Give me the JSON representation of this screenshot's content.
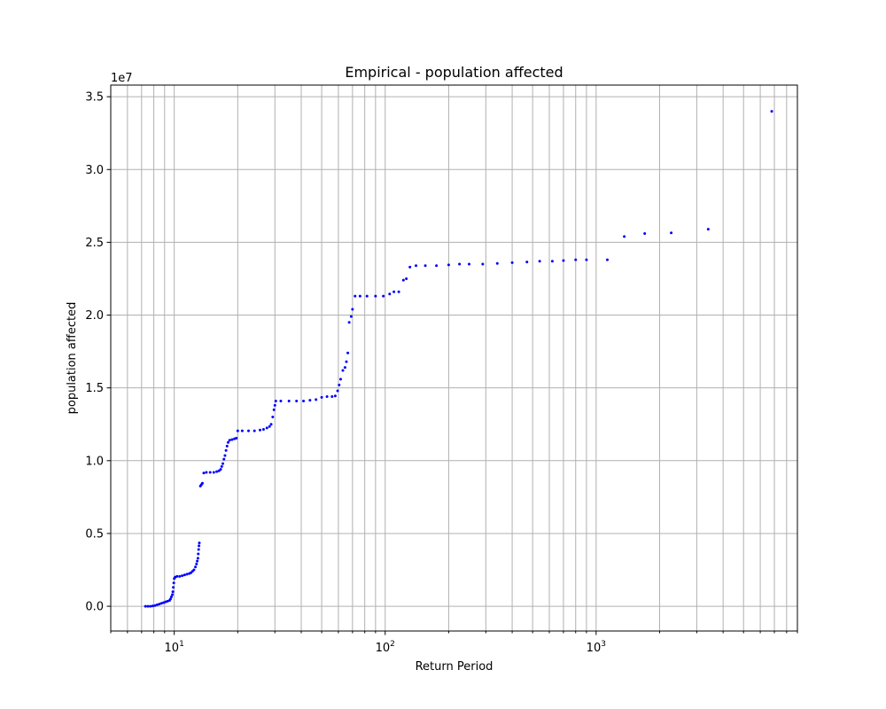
{
  "chart_data": {
    "type": "scatter",
    "title": "Empirical - population affected",
    "xlabel": "Return Period",
    "ylabel": "population affected",
    "x_scale": "log",
    "xlim": [
      5.0,
      9000
    ],
    "ylim": [
      -1700000.0,
      35800000.0
    ],
    "y_offset_label": "1e7",
    "x_ticks": [
      {
        "value": 10,
        "base": "10",
        "exp": "1"
      },
      {
        "value": 100,
        "base": "10",
        "exp": "2"
      },
      {
        "value": 1000,
        "base": "10",
        "exp": "3"
      }
    ],
    "y_ticks": [
      {
        "value": 0,
        "label": "0.0"
      },
      {
        "value": 5000000,
        "label": "0.5"
      },
      {
        "value": 10000000,
        "label": "1.0"
      },
      {
        "value": 15000000,
        "label": "1.5"
      },
      {
        "value": 20000000,
        "label": "2.0"
      },
      {
        "value": 25000000,
        "label": "2.5"
      },
      {
        "value": 30000000,
        "label": "3.0"
      },
      {
        "value": 35000000,
        "label": "3.5"
      }
    ],
    "grid": true,
    "marker_color": "#0000ff",
    "series": [
      {
        "points": [
          [
            7.3,
            0
          ],
          [
            7.5,
            0
          ],
          [
            7.7,
            0
          ],
          [
            7.9,
            20000
          ],
          [
            8.1,
            50000
          ],
          [
            8.3,
            100000
          ],
          [
            8.5,
            150000
          ],
          [
            8.7,
            200000
          ],
          [
            8.9,
            250000
          ],
          [
            9.1,
            300000
          ],
          [
            9.3,
            350000
          ],
          [
            9.5,
            400000
          ],
          [
            9.6,
            500000
          ],
          [
            9.7,
            650000
          ],
          [
            9.8,
            800000
          ],
          [
            9.85,
            1000000
          ],
          [
            9.9,
            1300000
          ],
          [
            9.95,
            1600000
          ],
          [
            10.0,
            1900000
          ],
          [
            10.1,
            2000000
          ],
          [
            10.3,
            2050000
          ],
          [
            10.6,
            2050000
          ],
          [
            10.9,
            2100000
          ],
          [
            11.2,
            2150000
          ],
          [
            11.5,
            2200000
          ],
          [
            11.8,
            2250000
          ],
          [
            12.0,
            2300000
          ],
          [
            12.2,
            2400000
          ],
          [
            12.4,
            2500000
          ],
          [
            12.6,
            2700000
          ],
          [
            12.75,
            2900000
          ],
          [
            12.85,
            3100000
          ],
          [
            12.95,
            3300000
          ],
          [
            13.0,
            3600000
          ],
          [
            13.05,
            3900000
          ],
          [
            13.1,
            4150000
          ],
          [
            13.15,
            4350000
          ],
          [
            13.3,
            8250000
          ],
          [
            13.45,
            8350000
          ],
          [
            13.6,
            8450000
          ],
          [
            13.8,
            9150000
          ],
          [
            14.2,
            9200000
          ],
          [
            14.8,
            9200000
          ],
          [
            15.4,
            9200000
          ],
          [
            15.9,
            9250000
          ],
          [
            16.3,
            9300000
          ],
          [
            16.6,
            9400000
          ],
          [
            16.8,
            9600000
          ],
          [
            17.0,
            9800000
          ],
          [
            17.2,
            10100000
          ],
          [
            17.4,
            10350000
          ],
          [
            17.6,
            10700000
          ],
          [
            17.8,
            11000000
          ],
          [
            18.0,
            11250000
          ],
          [
            18.3,
            11400000
          ],
          [
            18.8,
            11450000
          ],
          [
            19.3,
            11500000
          ],
          [
            19.7,
            11550000
          ],
          [
            20.0,
            12050000
          ],
          [
            21.0,
            12050000
          ],
          [
            22.5,
            12050000
          ],
          [
            24.0,
            12050000
          ],
          [
            25.5,
            12100000
          ],
          [
            26.5,
            12150000
          ],
          [
            27.5,
            12250000
          ],
          [
            28.3,
            12350000
          ],
          [
            28.8,
            12500000
          ],
          [
            29.3,
            13000000
          ],
          [
            29.7,
            13500000
          ],
          [
            30.0,
            13800000
          ],
          [
            30.3,
            14100000
          ],
          [
            32.0,
            14100000
          ],
          [
            35.0,
            14100000
          ],
          [
            38.0,
            14100000
          ],
          [
            41.0,
            14100000
          ],
          [
            44.0,
            14150000
          ],
          [
            47.0,
            14200000
          ],
          [
            50.0,
            14350000
          ],
          [
            53.0,
            14400000
          ],
          [
            56.0,
            14400000
          ],
          [
            58.0,
            14450000
          ],
          [
            59.5,
            14800000
          ],
          [
            60.5,
            15200000
          ],
          [
            61.5,
            15600000
          ],
          [
            63.0,
            16200000
          ],
          [
            64.5,
            16400000
          ],
          [
            65.5,
            16800000
          ],
          [
            66.5,
            17400000
          ],
          [
            67.5,
            19500000
          ],
          [
            69.0,
            19900000
          ],
          [
            70.0,
            20400000
          ],
          [
            72.0,
            21300000
          ],
          [
            76.0,
            21300000
          ],
          [
            82.0,
            21300000
          ],
          [
            90.0,
            21300000
          ],
          [
            98.0,
            21300000
          ],
          [
            105.0,
            21450000
          ],
          [
            110.0,
            21600000
          ],
          [
            116.0,
            21600000
          ],
          [
            122.0,
            22400000
          ],
          [
            126.0,
            22500000
          ],
          [
            131.0,
            23300000
          ],
          [
            140.0,
            23400000
          ],
          [
            155.0,
            23400000
          ],
          [
            175.0,
            23400000
          ],
          [
            200.0,
            23450000
          ],
          [
            225.0,
            23500000
          ],
          [
            250.0,
            23500000
          ],
          [
            290.0,
            23500000
          ],
          [
            340.0,
            23550000
          ],
          [
            400.0,
            23600000
          ],
          [
            470.0,
            23650000
          ],
          [
            540.0,
            23700000
          ],
          [
            620.0,
            23700000
          ],
          [
            700.0,
            23750000
          ],
          [
            800.0,
            23800000
          ],
          [
            900.0,
            23800000
          ],
          [
            1130.0,
            23800000
          ],
          [
            1360.0,
            25400000
          ],
          [
            1700.0,
            25600000
          ],
          [
            2270.0,
            25650000
          ],
          [
            3400.0,
            25900000
          ],
          [
            6800.0,
            34000000
          ]
        ]
      }
    ]
  }
}
